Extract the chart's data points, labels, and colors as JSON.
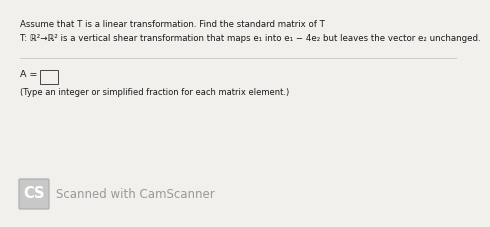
{
  "bg_color": "#f2f0ed",
  "title_text": "Assume that T is a linear transformation. Find the standard matrix of T",
  "problem_text": "T: ℝ²→ℝ² is a vertical shear transformation that maps e₁ into e₁ − 4e₂ but leaves the vector e₂ unchanged.",
  "answer_label": "A =",
  "answer_hint": "(Type an integer or simplified fraction for each matrix element.)",
  "cs_text": "Scanned with CamScanner",
  "cs_text_color": "#999999",
  "line_color": "#cccccc",
  "text_color": "#1a1a1a",
  "title_fontsize": 6.2,
  "problem_fontsize": 6.2,
  "answer_fontsize": 6.8,
  "hint_fontsize": 6.0,
  "cs_fontsize": 8.5,
  "cs_label_fontsize": 10.5
}
